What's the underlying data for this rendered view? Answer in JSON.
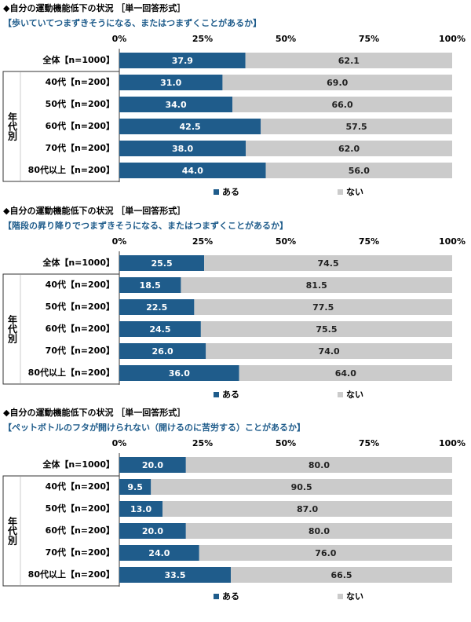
{
  "chart_data": [
    {
      "type": "stacked-bar",
      "title": "◆自分の運動機能低下の状況 ［単一回答形式］",
      "subtitle": "【歩いていてつまずきそうになる、またはつまずくことがあるか】",
      "categories": [
        "全体【n=1000】",
        "40代【n=200】",
        "50代【n=200】",
        "60代【n=200】",
        "70代【n=200】",
        "80代以上【n=200】"
      ],
      "group_label": "年代別",
      "series": [
        {
          "name": "ある",
          "color": "#1f5c8b",
          "values": [
            37.9,
            31.0,
            34.0,
            42.5,
            38.0,
            44.0
          ],
          "value_labels": [
            "37.9",
            "31.0",
            "34.0",
            "42.5",
            "38.0",
            "44.0"
          ]
        },
        {
          "name": "ない",
          "color": "#cbcbcb",
          "values": [
            62.1,
            69.0,
            66.0,
            57.5,
            62.0,
            56.0
          ],
          "value_labels": [
            "62.1",
            "69.0",
            "66.0",
            "57.5",
            "62.0",
            "56.0"
          ]
        }
      ],
      "xlim": [
        0,
        100
      ],
      "xticks": [
        {
          "value": 0,
          "label": "0%"
        },
        {
          "value": 25,
          "label": "25%"
        },
        {
          "value": 50,
          "label": "50%"
        },
        {
          "value": 75,
          "label": "75%"
        },
        {
          "value": 100,
          "label": "100%"
        }
      ],
      "grid": false,
      "legend": "bottom"
    },
    {
      "type": "stacked-bar",
      "title": "◆自分の運動機能低下の状況 ［単一回答形式］",
      "subtitle": "【階段の昇り降りでつまずきそうになる、またはつまずくことがあるか】",
      "categories": [
        "全体【n=1000】",
        "40代【n=200】",
        "50代【n=200】",
        "60代【n=200】",
        "70代【n=200】",
        "80代以上【n=200】"
      ],
      "group_label": "年代別",
      "series": [
        {
          "name": "ある",
          "color": "#1f5c8b",
          "values": [
            25.5,
            18.5,
            22.5,
            24.5,
            26.0,
            36.0
          ],
          "value_labels": [
            "25.5",
            "18.5",
            "22.5",
            "24.5",
            "26.0",
            "36.0"
          ]
        },
        {
          "name": "ない",
          "color": "#cbcbcb",
          "values": [
            74.5,
            81.5,
            77.5,
            75.5,
            74.0,
            64.0
          ],
          "value_labels": [
            "74.5",
            "81.5",
            "77.5",
            "75.5",
            "74.0",
            "64.0"
          ]
        }
      ],
      "xlim": [
        0,
        100
      ],
      "xticks": [
        {
          "value": 0,
          "label": "0%"
        },
        {
          "value": 25,
          "label": "25%"
        },
        {
          "value": 50,
          "label": "50%"
        },
        {
          "value": 75,
          "label": "75%"
        },
        {
          "value": 100,
          "label": "100%"
        }
      ],
      "grid": false,
      "legend": "bottom"
    },
    {
      "type": "stacked-bar",
      "title": "◆自分の運動機能低下の状況 ［単一回答形式］",
      "subtitle": "【ペットボトルのフタが開けられない（開けるのに苦労する）ことがあるか】",
      "categories": [
        "全体【n=1000】",
        "40代【n=200】",
        "50代【n=200】",
        "60代【n=200】",
        "70代【n=200】",
        "80代以上【n=200】"
      ],
      "group_label": "年代別",
      "series": [
        {
          "name": "ある",
          "color": "#1f5c8b",
          "values": [
            20.0,
            9.5,
            13.0,
            20.0,
            24.0,
            33.5
          ],
          "value_labels": [
            "20.0",
            "9.5",
            "13.0",
            "20.0",
            "24.0",
            "33.5"
          ]
        },
        {
          "name": "ない",
          "color": "#cbcbcb",
          "values": [
            80.0,
            90.5,
            87.0,
            80.0,
            76.0,
            66.5
          ],
          "value_labels": [
            "80.0",
            "90.5",
            "87.0",
            "80.0",
            "76.0",
            "66.5"
          ]
        }
      ],
      "xlim": [
        0,
        100
      ],
      "xticks": [
        {
          "value": 0,
          "label": "0%"
        },
        {
          "value": 25,
          "label": "25%"
        },
        {
          "value": 50,
          "label": "50%"
        },
        {
          "value": 75,
          "label": "75%"
        },
        {
          "value": 100,
          "label": "100%"
        }
      ],
      "grid": false,
      "legend": "bottom"
    }
  ]
}
